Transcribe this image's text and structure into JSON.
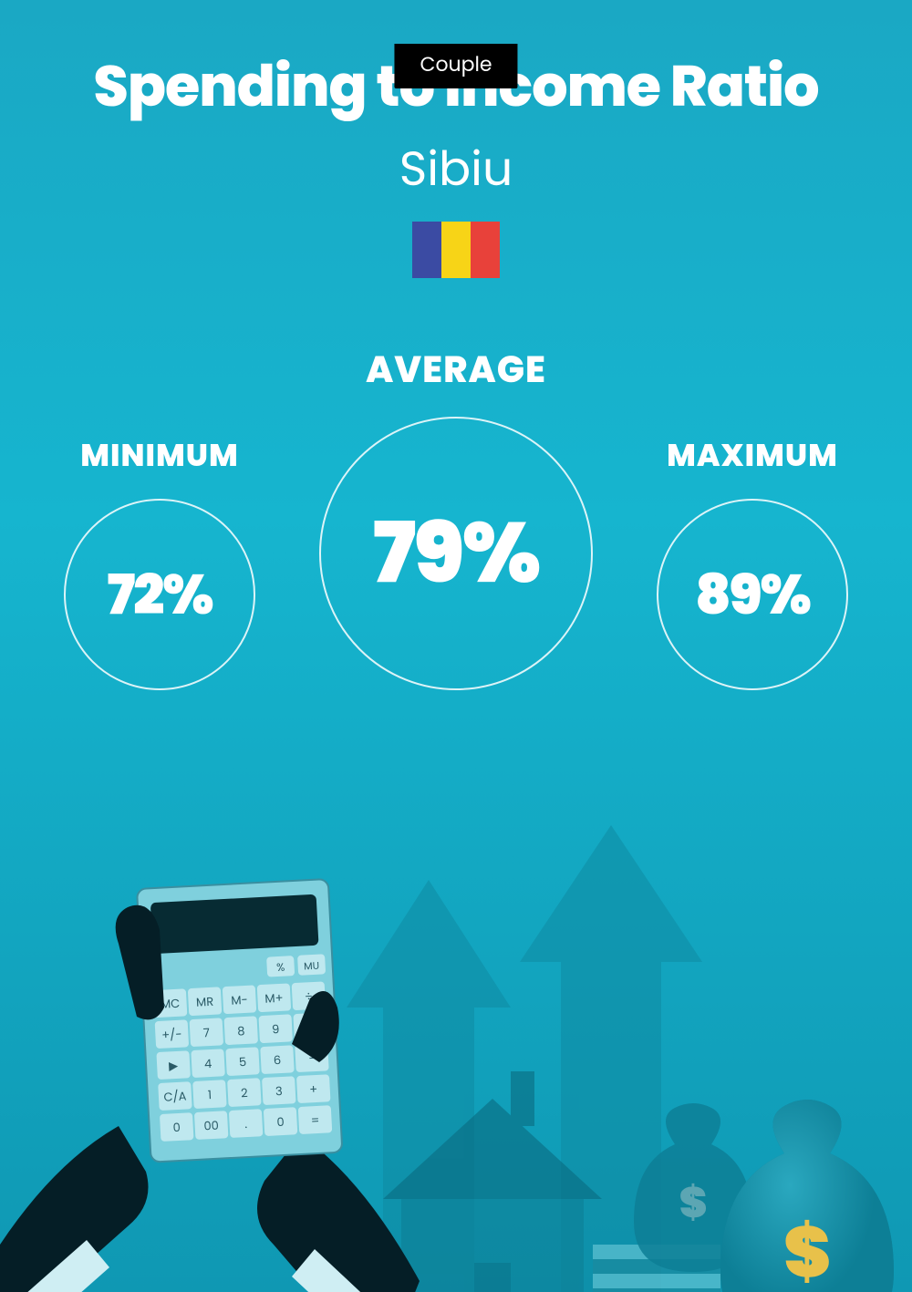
{
  "badge": "Couple",
  "title": "Spending to Income Ratio",
  "city": "Sibiu",
  "flag": {
    "colors": [
      "#3b4ba3",
      "#f7d417",
      "#e8413a"
    ]
  },
  "stats": {
    "minimum": {
      "label": "MINIMUM",
      "value": "72%"
    },
    "average": {
      "label": "AVERAGE",
      "value": "79%"
    },
    "maximum": {
      "label": "MAXIMUM",
      "value": "89%"
    }
  },
  "styling": {
    "background_gradient": [
      "#1aa8c4",
      "#16b5cf",
      "#0f98b3"
    ],
    "text_color": "#ffffff",
    "badge_bg": "#000000",
    "badge_text": "#ffffff",
    "title_fontsize": 62,
    "title_fontweight": 800,
    "city_fontsize": 52,
    "label_fontsize_small": 34,
    "label_fontsize_big": 40,
    "circle_border_color": "rgba(255,255,255,0.85)",
    "circle_border_width": 2,
    "circle_small_diameter": 210,
    "circle_big_diameter": 300,
    "value_fontsize_small": 60,
    "value_fontsize_big": 92,
    "illustration": {
      "arrow_color": "#0f8ba3",
      "house_fill": "#0d7f96",
      "house_roof": "#0a6b80",
      "calc_body": "#7fd0dd",
      "calc_screen": "#072b33",
      "calc_key": "#bfe8ef",
      "calc_key_text": "#2a5a66",
      "hand_dark": "#051e26",
      "cuff": "#cfeef3",
      "money_bag": "#0d7f96",
      "money_bag_highlight": "#2aa8bf",
      "dollar_sign": "#e8c14a",
      "stack_light": "#5cc0d1",
      "stack_dark": "#1a8ba0"
    }
  }
}
